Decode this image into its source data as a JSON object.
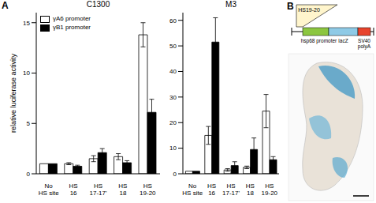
{
  "panel_a_label": "A",
  "chart_data": [
    {
      "type": "bar",
      "title": "C1300",
      "y_label": "relative luciferase activity",
      "categories": [
        "No HS site",
        "HS 16",
        "HS 17-17'",
        "HS 18",
        "HS 19-20"
      ],
      "series": [
        {
          "name": "γA6 promoter",
          "color": "#ffffff",
          "values": [
            1,
            1.0,
            1.5,
            1.7,
            13.8
          ],
          "errors": [
            0,
            0.1,
            0.3,
            0.3,
            1.2
          ]
        },
        {
          "name": "γB1 promoter",
          "color": "#000000",
          "values": [
            1,
            0.75,
            2.1,
            1.1,
            6.1
          ],
          "errors": [
            0,
            0.1,
            0.4,
            0.2,
            1.3
          ]
        }
      ],
      "ylim": [
        0,
        16
      ],
      "yticks": [
        0,
        5,
        10,
        15
      ],
      "legend": "upper left"
    },
    {
      "type": "bar",
      "title": "M3",
      "categories": [
        "No HS site",
        "HS 16",
        "HS 17-17'",
        "HS 18",
        "HS 19-20"
      ],
      "series": [
        {
          "name": "γA6 promoter",
          "color": "#ffffff",
          "values": [
            1,
            15,
            1.5,
            2.5,
            24.5
          ],
          "errors": [
            0,
            3.5,
            0.5,
            0.5,
            6.5
          ]
        },
        {
          "name": "γB1 promoter",
          "color": "#000000",
          "values": [
            1,
            51.5,
            3.2,
            9.5,
            5.5
          ],
          "errors": [
            0,
            9.5,
            1.5,
            4.5,
            1.2
          ]
        }
      ],
      "ylim": [
        0,
        63
      ],
      "yticks": [
        0,
        10,
        20,
        30,
        40,
        50,
        60
      ]
    }
  ],
  "diagram": {
    "label": "B",
    "insert": "HS19-20",
    "segments": [
      {
        "label": "hsp68 promoter",
        "color": "#8cc63f"
      },
      {
        "label": "lacZ",
        "color": "#8ecae6"
      },
      {
        "label": "SV40 polyA",
        "color": "#e8432c"
      }
    ]
  }
}
